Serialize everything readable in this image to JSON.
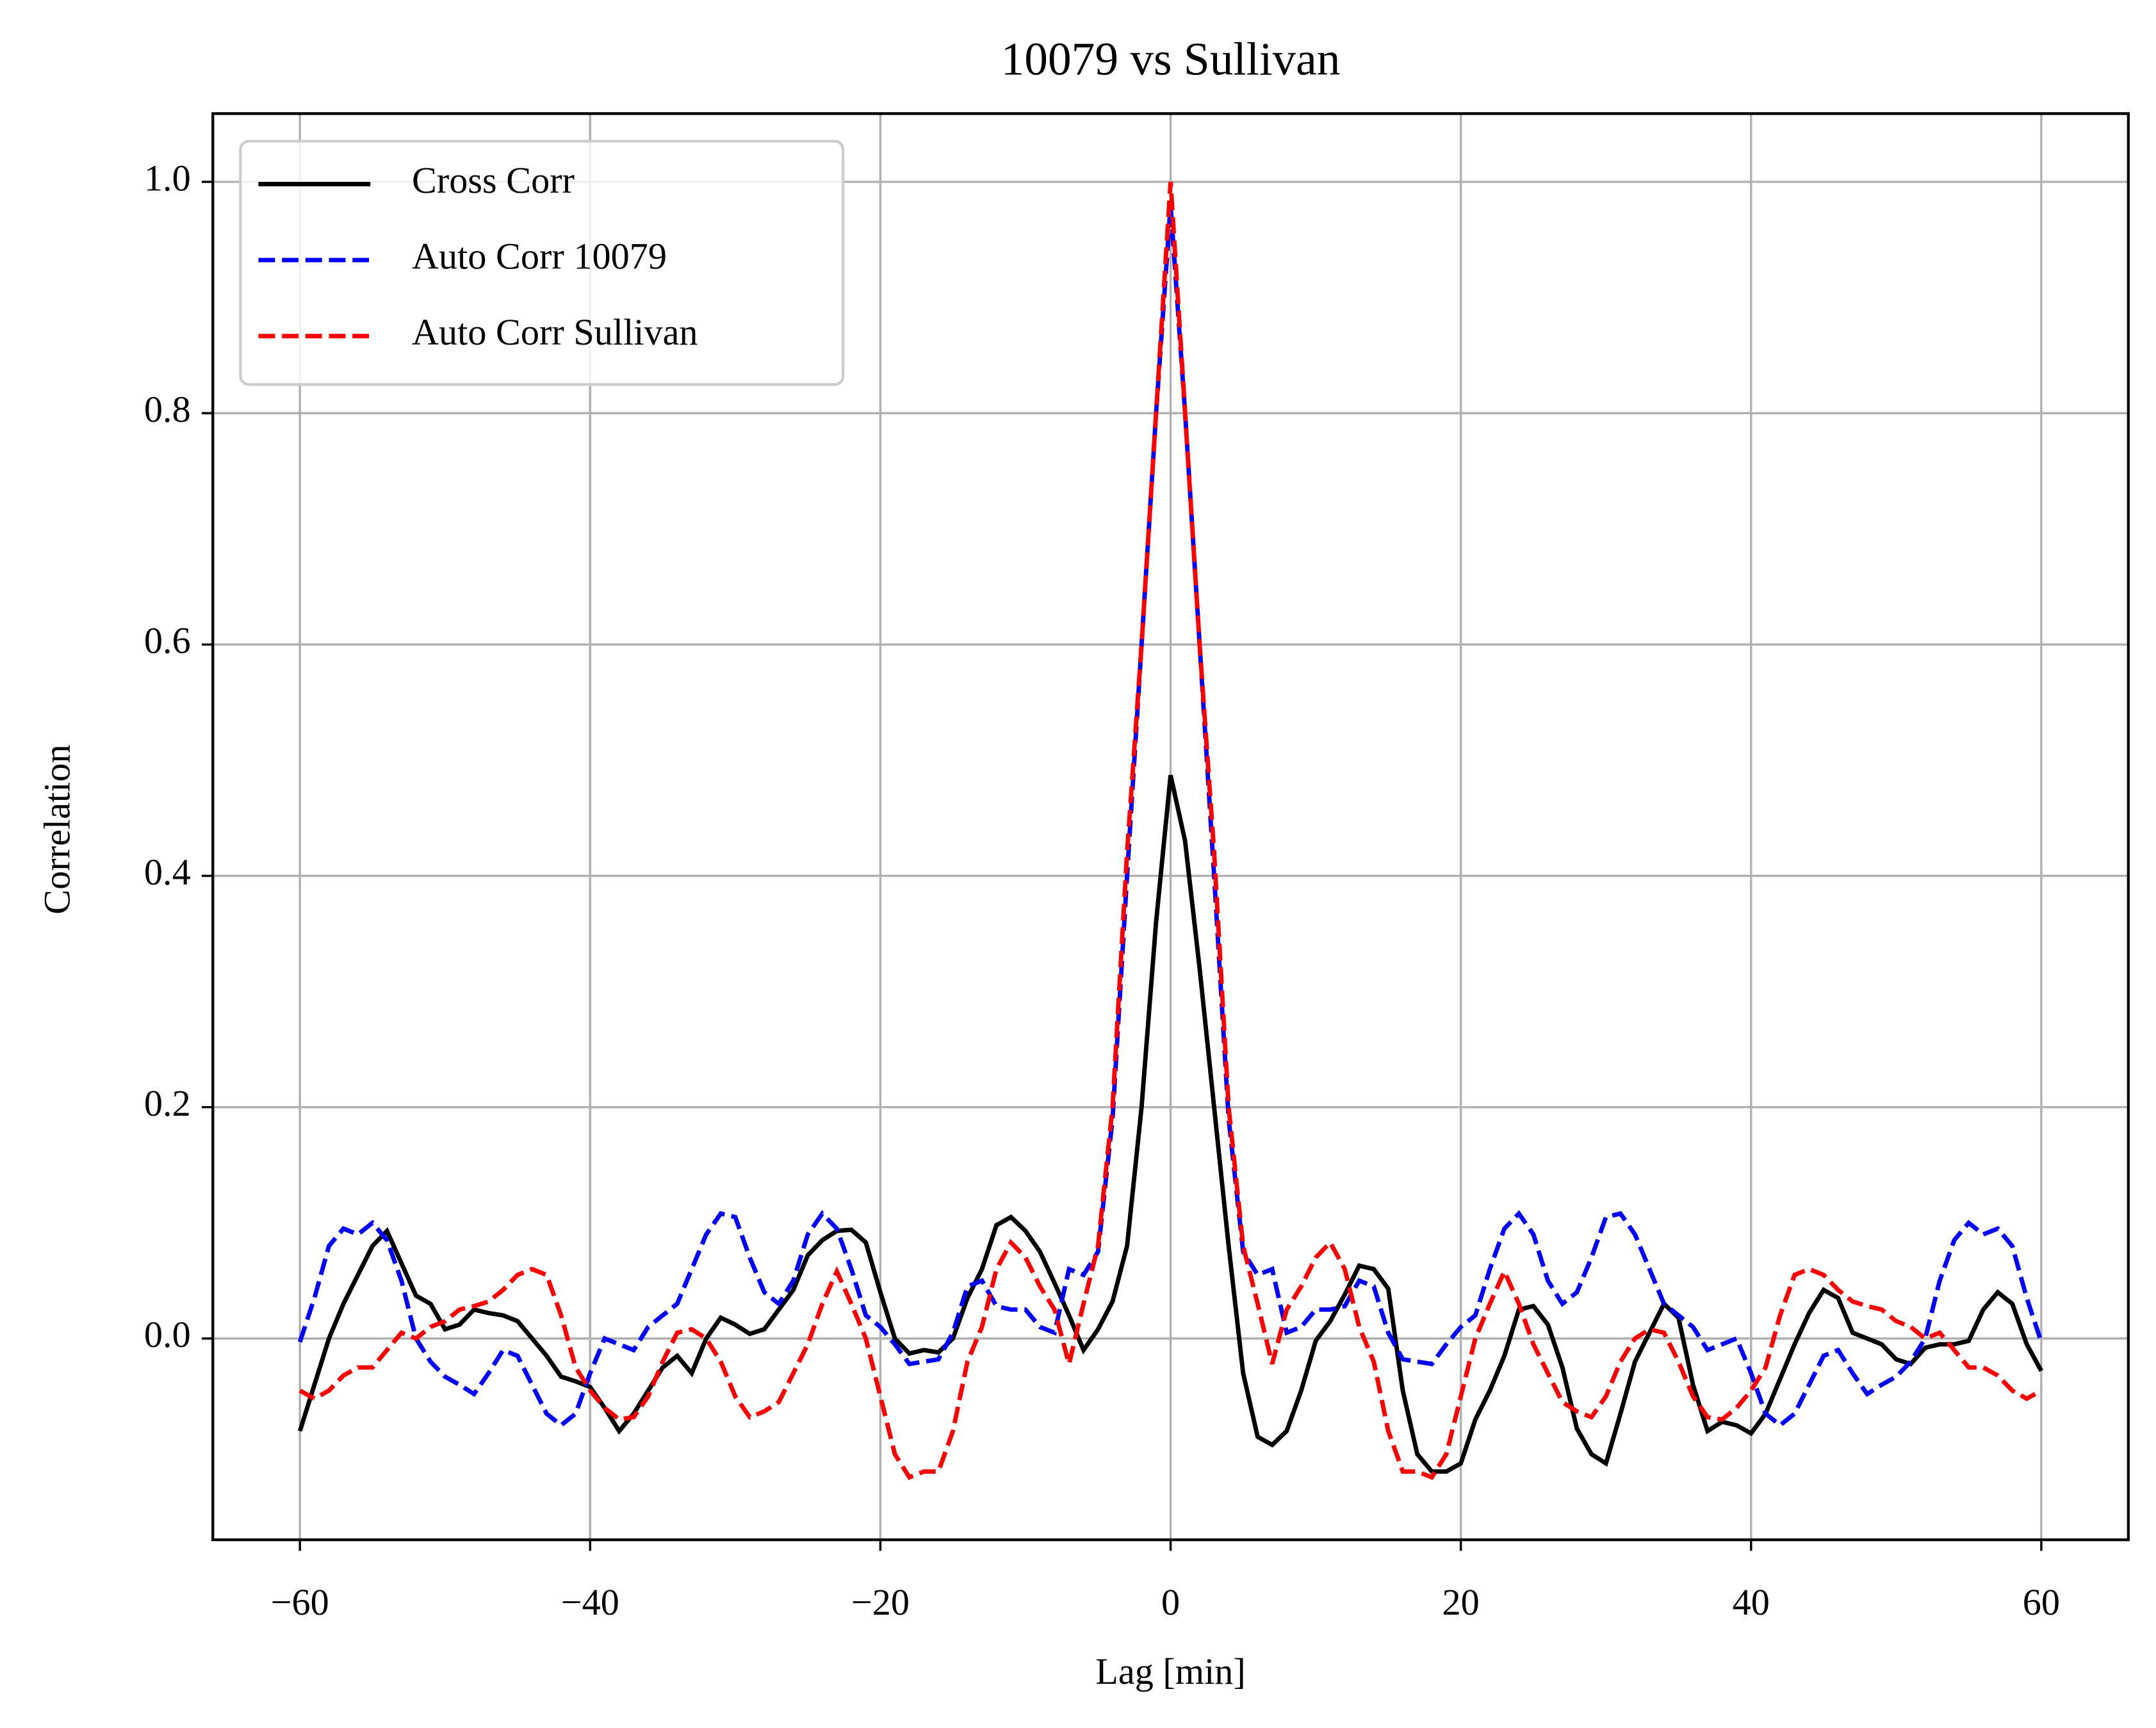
{
  "chart_data": {
    "type": "line",
    "title": "10079 vs Sullivan",
    "xlabel": "Lag [min]",
    "ylabel": "Correlation",
    "x": [
      -60,
      -59,
      -58,
      -57,
      -56,
      -55,
      -54,
      -53,
      -52,
      -51,
      -50,
      -49,
      -48,
      -47,
      -46,
      -45,
      -44,
      -43,
      -42,
      -41,
      -40,
      -39,
      -38,
      -37,
      -36,
      -35,
      -34,
      -33,
      -32,
      -31,
      -30,
      -29,
      -28,
      -27,
      -26,
      -25,
      -24,
      -23,
      -22,
      -21,
      -20,
      -19,
      -18,
      -17,
      -16,
      -15,
      -14,
      -13,
      -12,
      -11,
      -10,
      -9,
      -8,
      -7,
      -6,
      -5,
      -4,
      -3,
      -2,
      -1,
      0,
      1,
      2,
      3,
      4,
      5,
      6,
      7,
      8,
      9,
      10,
      11,
      12,
      13,
      14,
      15,
      16,
      17,
      18,
      19,
      20,
      21,
      22,
      23,
      24,
      25,
      26,
      27,
      28,
      29,
      30,
      31,
      32,
      33,
      34,
      35,
      36,
      37,
      38,
      39,
      40,
      41,
      42,
      43,
      44,
      45,
      46,
      47,
      48,
      49,
      50,
      51,
      52,
      53,
      54,
      55,
      56,
      57,
      58,
      59,
      60
    ],
    "series": [
      {
        "name": "Cross Corr",
        "color": "#000000",
        "linestyle": "solid",
        "values": [
          -0.08,
          -0.04,
          0.0,
          0.03,
          0.055,
          0.08,
          0.093,
          0.065,
          0.037,
          0.03,
          0.008,
          0.012,
          0.025,
          0.022,
          0.02,
          0.015,
          0.0,
          -0.015,
          -0.033,
          -0.037,
          -0.042,
          -0.06,
          -0.08,
          -0.065,
          -0.045,
          -0.025,
          -0.015,
          -0.03,
          0.0,
          0.018,
          0.012,
          0.004,
          0.008,
          0.025,
          0.042,
          0.072,
          0.085,
          0.093,
          0.094,
          0.083,
          0.04,
          0.0,
          -0.013,
          -0.01,
          -0.012,
          0.0,
          0.035,
          0.06,
          0.098,
          0.105,
          0.093,
          0.075,
          0.048,
          0.02,
          -0.01,
          0.008,
          0.032,
          0.08,
          0.2,
          0.36,
          0.487,
          0.43,
          0.32,
          0.2,
          0.08,
          -0.03,
          -0.085,
          -0.092,
          -0.08,
          -0.045,
          -0.002,
          0.015,
          0.038,
          0.063,
          0.06,
          0.043,
          -0.045,
          -0.1,
          -0.115,
          -0.115,
          -0.108,
          -0.07,
          -0.045,
          -0.015,
          0.025,
          0.028,
          0.012,
          -0.025,
          -0.078,
          -0.1,
          -0.108,
          -0.065,
          -0.02,
          0.005,
          0.03,
          0.018,
          -0.04,
          -0.08,
          -0.072,
          -0.075,
          -0.082,
          -0.065,
          -0.035,
          -0.005,
          0.022,
          0.042,
          0.035,
          0.005,
          0.0,
          -0.005,
          -0.018,
          -0.022,
          -0.008,
          -0.005,
          -0.005,
          -0.002,
          0.025,
          0.04,
          0.03,
          -0.005,
          -0.028
        ]
      },
      {
        "name": "Auto Corr 10079",
        "color": "#0000ff",
        "linestyle": "dashed",
        "values": [
          -0.003,
          0.035,
          0.08,
          0.095,
          0.09,
          0.1,
          0.085,
          0.05,
          0.0,
          -0.02,
          -0.033,
          -0.04,
          -0.048,
          -0.03,
          -0.01,
          -0.015,
          -0.04,
          -0.065,
          -0.075,
          -0.065,
          -0.03,
          0.0,
          -0.005,
          -0.01,
          0.01,
          0.02,
          0.03,
          0.06,
          0.09,
          0.108,
          0.105,
          0.07,
          0.04,
          0.03,
          0.05,
          0.09,
          0.108,
          0.095,
          0.06,
          0.02,
          0.01,
          -0.005,
          -0.022,
          -0.02,
          -0.018,
          0.005,
          0.045,
          0.05,
          0.028,
          0.025,
          0.025,
          0.01,
          0.005,
          0.06,
          0.055,
          0.075,
          0.19,
          0.4,
          0.6,
          0.8,
          0.98,
          0.8,
          0.6,
          0.4,
          0.19,
          0.075,
          0.055,
          0.06,
          0.005,
          0.01,
          0.025,
          0.025,
          0.028,
          0.05,
          0.045,
          0.005,
          -0.018,
          -0.02,
          -0.022,
          -0.005,
          0.01,
          0.02,
          0.06,
          0.095,
          0.108,
          0.09,
          0.05,
          0.03,
          0.04,
          0.07,
          0.105,
          0.108,
          0.09,
          0.06,
          0.03,
          0.02,
          0.01,
          -0.01,
          -0.005,
          0.0,
          -0.03,
          -0.065,
          -0.075,
          -0.065,
          -0.04,
          -0.015,
          -0.01,
          -0.03,
          -0.048,
          -0.04,
          -0.033,
          -0.02,
          0.0,
          0.05,
          0.085,
          0.1,
          0.09,
          0.095,
          0.08,
          0.035,
          -0.003
        ]
      },
      {
        "name": "Auto Corr Sullivan",
        "color": "#ff0000",
        "linestyle": "dashed",
        "values": [
          -0.045,
          -0.052,
          -0.045,
          -0.032,
          -0.025,
          -0.025,
          -0.01,
          0.005,
          0.0,
          0.01,
          0.015,
          0.025,
          0.028,
          0.032,
          0.042,
          0.055,
          0.06,
          0.055,
          0.02,
          -0.025,
          -0.045,
          -0.06,
          -0.07,
          -0.068,
          -0.05,
          -0.02,
          0.005,
          0.008,
          0.0,
          -0.02,
          -0.05,
          -0.068,
          -0.063,
          -0.055,
          -0.03,
          -0.005,
          0.03,
          0.058,
          0.03,
          0.0,
          -0.05,
          -0.1,
          -0.12,
          -0.115,
          -0.115,
          -0.08,
          -0.02,
          0.01,
          0.06,
          0.083,
          0.07,
          0.045,
          0.025,
          -0.022,
          0.03,
          0.08,
          0.2,
          0.42,
          0.6,
          0.8,
          1.0,
          0.8,
          0.6,
          0.42,
          0.2,
          0.08,
          0.03,
          -0.022,
          0.025,
          0.045,
          0.07,
          0.083,
          0.06,
          0.01,
          -0.02,
          -0.08,
          -0.115,
          -0.115,
          -0.12,
          -0.1,
          -0.05,
          0.0,
          0.03,
          0.058,
          0.03,
          -0.005,
          -0.03,
          -0.055,
          -0.063,
          -0.068,
          -0.05,
          -0.02,
          0.0,
          0.008,
          0.005,
          -0.02,
          -0.05,
          -0.068,
          -0.07,
          -0.06,
          -0.045,
          -0.025,
          0.02,
          0.055,
          0.06,
          0.055,
          0.042,
          0.032,
          0.028,
          0.025,
          0.015,
          0.01,
          0.0,
          0.005,
          -0.01,
          -0.025,
          -0.025,
          -0.032,
          -0.045,
          -0.052,
          -0.045
        ]
      }
    ],
    "xlim": [
      -66,
      66
    ],
    "ylim": [
      -0.174,
      1.059
    ],
    "xticks": [
      {
        "value": -60,
        "label": "−60"
      },
      {
        "value": -40,
        "label": "−40"
      },
      {
        "value": -20,
        "label": "−20"
      },
      0,
      20,
      40,
      60
    ],
    "yticks": [
      {
        "value": 0,
        "label": "0.0"
      },
      0.2,
      0.4,
      0.6,
      0.8,
      {
        "value": 1,
        "label": "1.0"
      }
    ],
    "grid": true,
    "legend": "upper left"
  }
}
